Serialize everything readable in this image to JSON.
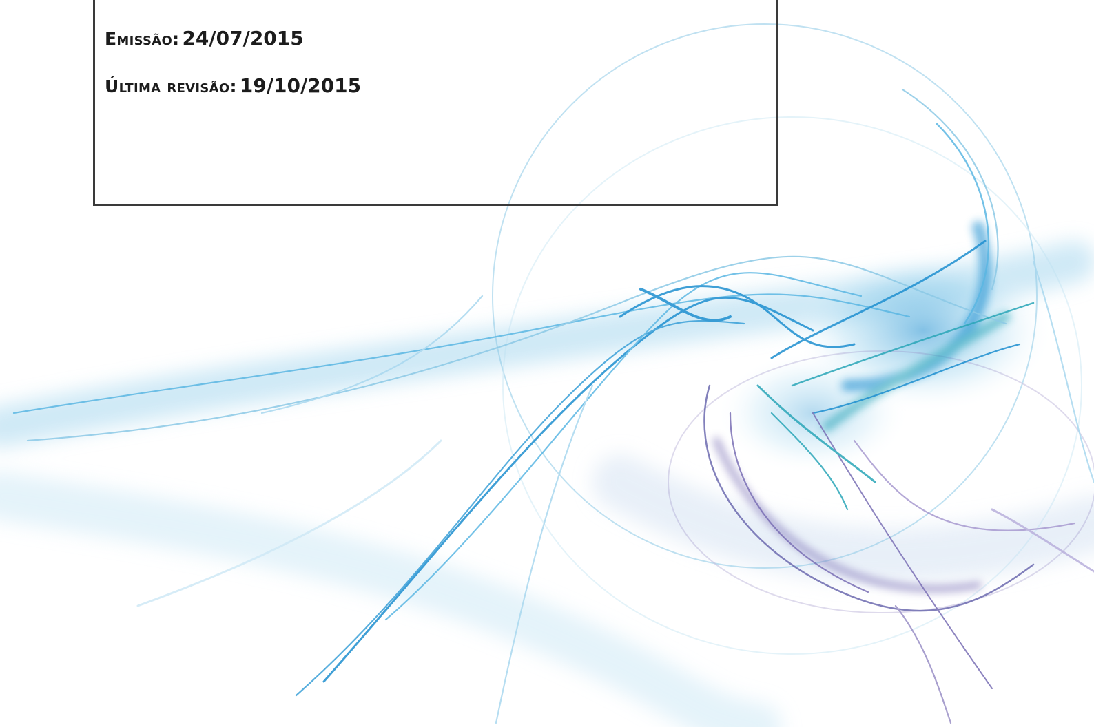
{
  "document": {
    "emission": {
      "label": "Emissão:",
      "value": "24/07/2015"
    },
    "last_revision": {
      "label": "Última revisão:",
      "value": "19/10/2015"
    }
  },
  "background": {
    "graphic": "abstract-fractal-swirl",
    "colors": [
      "#1e8fd0",
      "#5bb7e3",
      "#2aa6b8",
      "#7a6fb5",
      "#a9d8ef"
    ]
  }
}
